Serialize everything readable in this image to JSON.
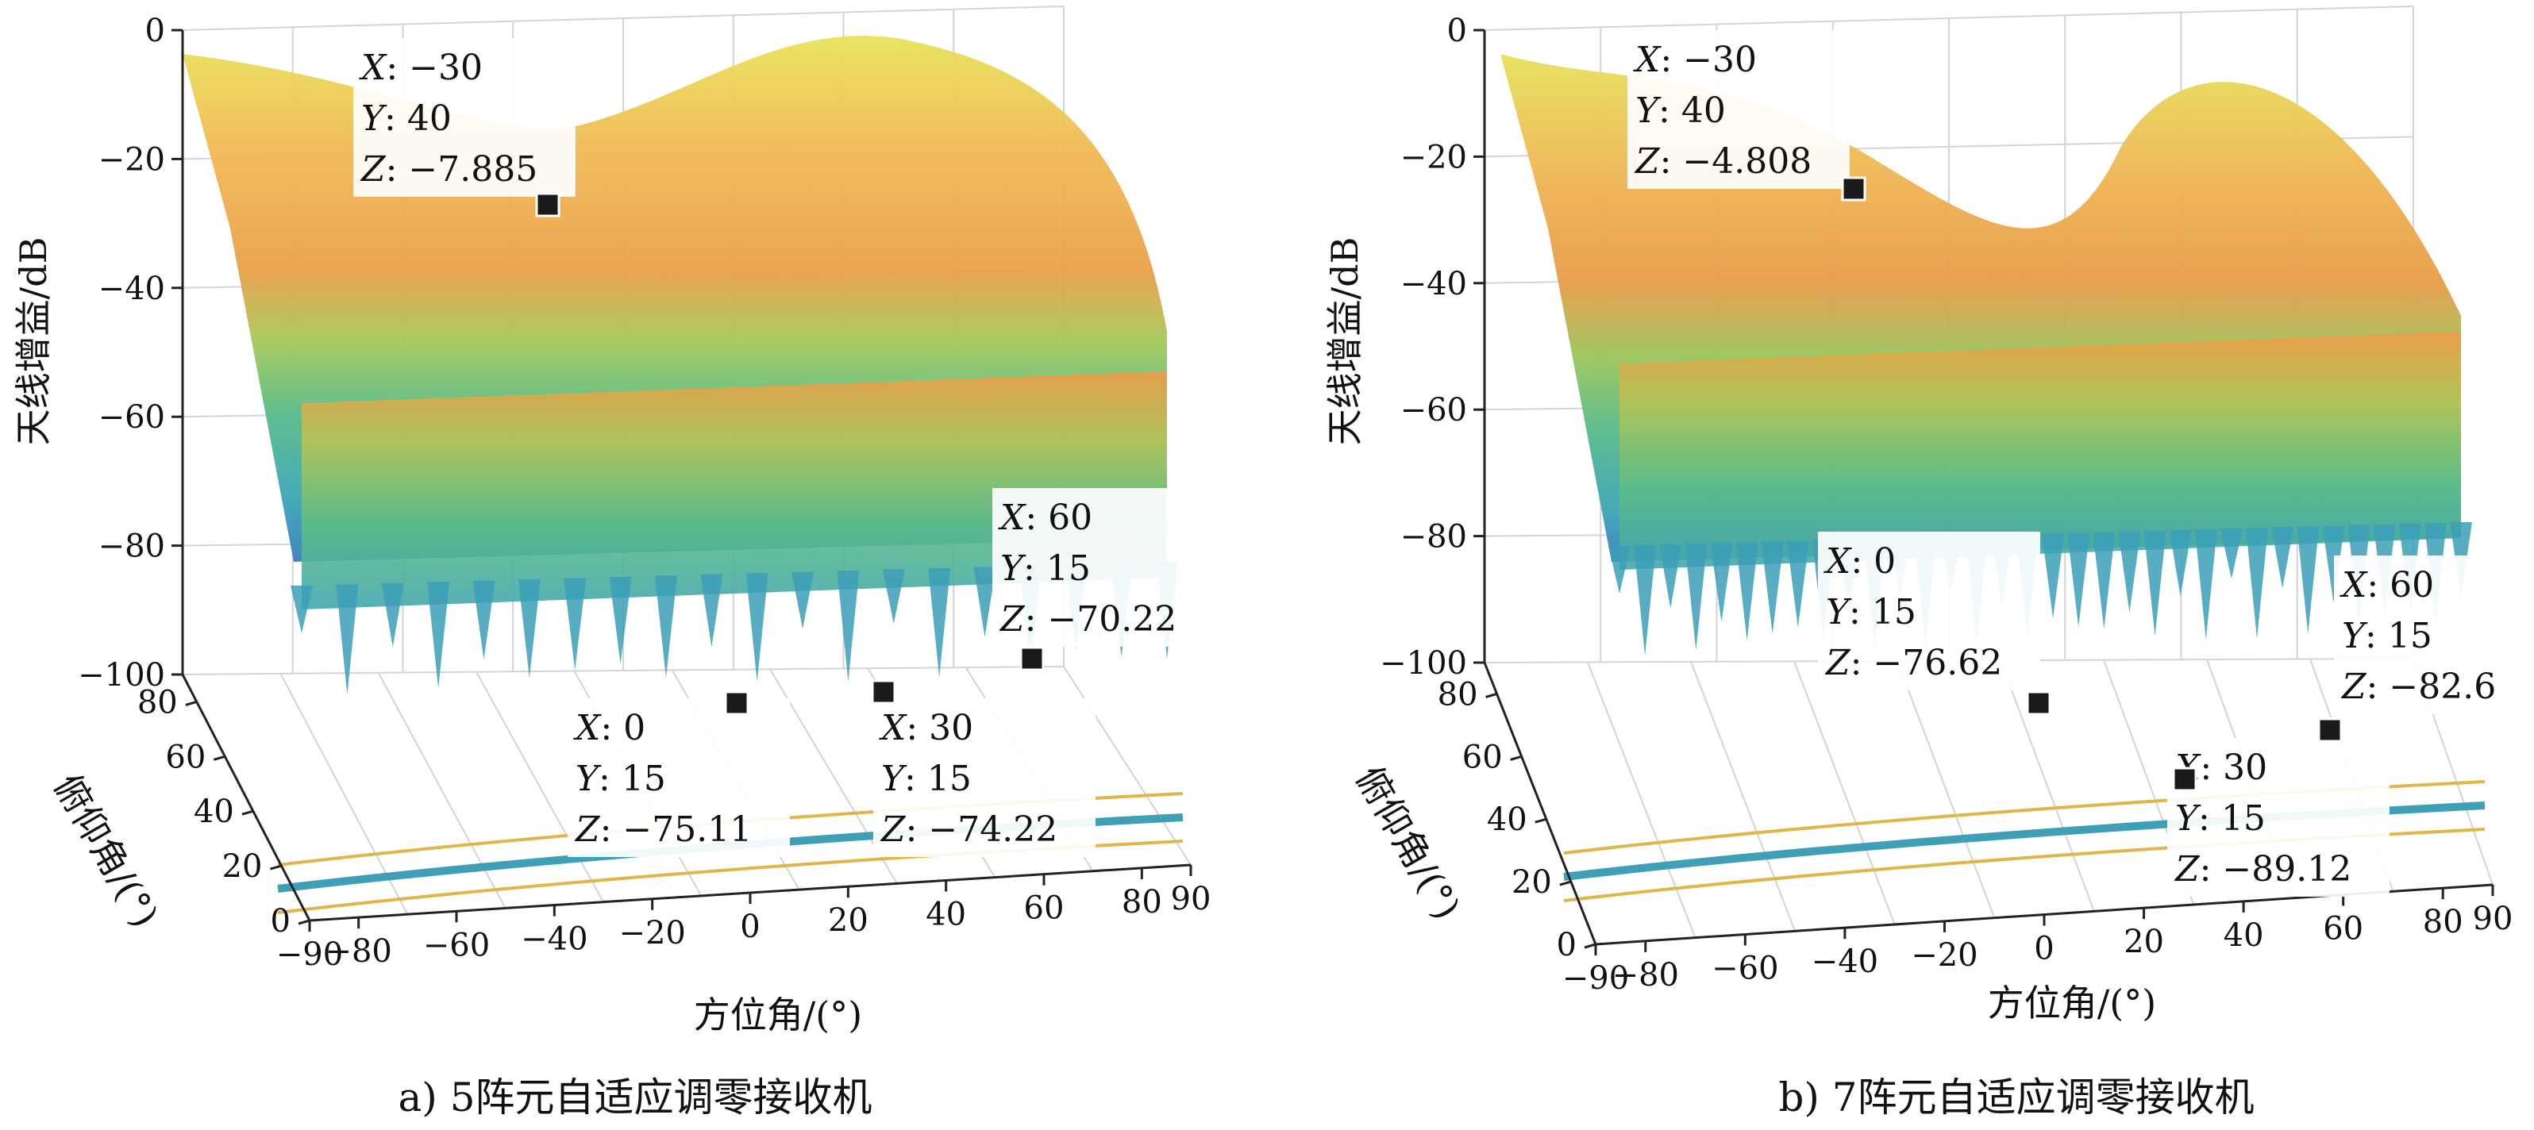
{
  "chart_data": [
    {
      "type": "surface",
      "caption": "a) 5阵元自适应调零接收机",
      "xlabel": "方位角/(°)",
      "ylabel": "俯仰角/(°)",
      "zlabel": "天线增益/dB",
      "xticks": [
        "−90",
        "−80",
        "−60",
        "−40",
        "−20",
        "0",
        "20",
        "40",
        "60",
        "80",
        "90"
      ],
      "yticks": [
        "0",
        "20",
        "40",
        "60",
        "80"
      ],
      "zticks": [
        "0",
        "−20",
        "−40",
        "−60",
        "−80",
        "−100"
      ],
      "xlim": [
        -90,
        90
      ],
      "ylim": [
        0,
        90
      ],
      "zlim": [
        -100,
        0
      ],
      "grid": true,
      "colormap": "parula-like (blue → green → yellow)",
      "annotations": [
        {
          "X": "−30",
          "Y": "40",
          "Z": "−7.885"
        },
        {
          "X": "0",
          "Y": "15",
          "Z": "−75.11"
        },
        {
          "X": "30",
          "Y": "15",
          "Z": "−74.22"
        },
        {
          "X": "60",
          "Y": "15",
          "Z": "−70.22"
        }
      ]
    },
    {
      "type": "surface",
      "caption": "b) 7阵元自适应调零接收机",
      "xlabel": "方位角/(°)",
      "ylabel": "俯仰角/(°)",
      "zlabel": "天线增益/dB",
      "xticks": [
        "−90",
        "−80",
        "−60",
        "−40",
        "−20",
        "0",
        "20",
        "40",
        "60",
        "80",
        "90"
      ],
      "yticks": [
        "0",
        "20",
        "40",
        "60",
        "80"
      ],
      "zticks": [
        "0",
        "−20",
        "−40",
        "−60",
        "−80",
        "−100"
      ],
      "xlim": [
        -90,
        90
      ],
      "ylim": [
        0,
        90
      ],
      "zlim": [
        -100,
        0
      ],
      "grid": true,
      "colormap": "parula-like (blue → green → yellow)",
      "annotations": [
        {
          "X": "−30",
          "Y": "40",
          "Z": "−4.808"
        },
        {
          "X": "0",
          "Y": "15",
          "Z": "−76.62"
        },
        {
          "X": "30",
          "Y": "15",
          "Z": "−89.12"
        },
        {
          "X": "60",
          "Y": "15",
          "Z": "−82.6"
        }
      ]
    }
  ],
  "labels": {
    "x": "X",
    "y": "Y",
    "z": "Z"
  }
}
